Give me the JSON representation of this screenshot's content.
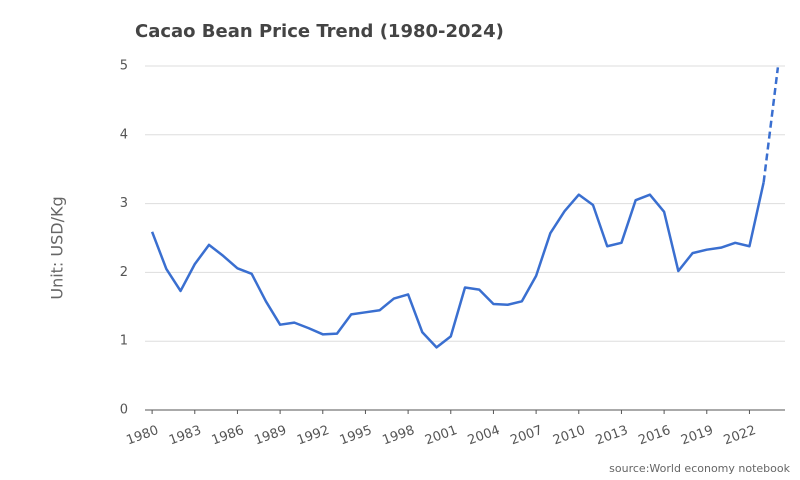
{
  "chart_data": {
    "type": "line",
    "title": "Cacao Bean Price Trend (1980-2024)",
    "y_label": "Unit: USD/Kg",
    "source": "source:World economy notebook",
    "x": [
      1980,
      1981,
      1982,
      1983,
      1984,
      1985,
      1986,
      1987,
      1988,
      1989,
      1990,
      1991,
      1992,
      1993,
      1994,
      1995,
      1996,
      1997,
      1998,
      1999,
      2000,
      2001,
      2002,
      2003,
      2004,
      2005,
      2006,
      2007,
      2008,
      2009,
      2010,
      2011,
      2012,
      2013,
      2014,
      2015,
      2016,
      2017,
      2018,
      2019,
      2020,
      2021,
      2022,
      2023,
      2024
    ],
    "series": [
      {
        "color": "#3a6fd0",
        "values": [
          2.59,
          2.05,
          1.73,
          2.12,
          2.4,
          2.24,
          2.06,
          1.98,
          1.58,
          1.24,
          1.27,
          1.19,
          1.1,
          1.11,
          1.39,
          1.42,
          1.45,
          1.62,
          1.68,
          1.13,
          0.91,
          1.07,
          1.78,
          1.75,
          1.54,
          1.53,
          1.58,
          1.95,
          2.57,
          2.89,
          3.13,
          2.98,
          2.38,
          2.43,
          3.05,
          3.13,
          2.88,
          2.02,
          2.28,
          2.33,
          2.36,
          2.43,
          2.38,
          3.31,
          4.98
        ],
        "dashed_from_x": 2023
      }
    ],
    "xlim": [
      1979.5,
      2024.5
    ],
    "xticks": [
      1980,
      1983,
      1986,
      1989,
      1992,
      1995,
      1998,
      2001,
      2004,
      2007,
      2010,
      2013,
      2016,
      2019,
      2022
    ],
    "ylim": [
      0,
      5
    ],
    "yticks": [
      0,
      1,
      2,
      3,
      4,
      5
    ],
    "grid": true
  }
}
